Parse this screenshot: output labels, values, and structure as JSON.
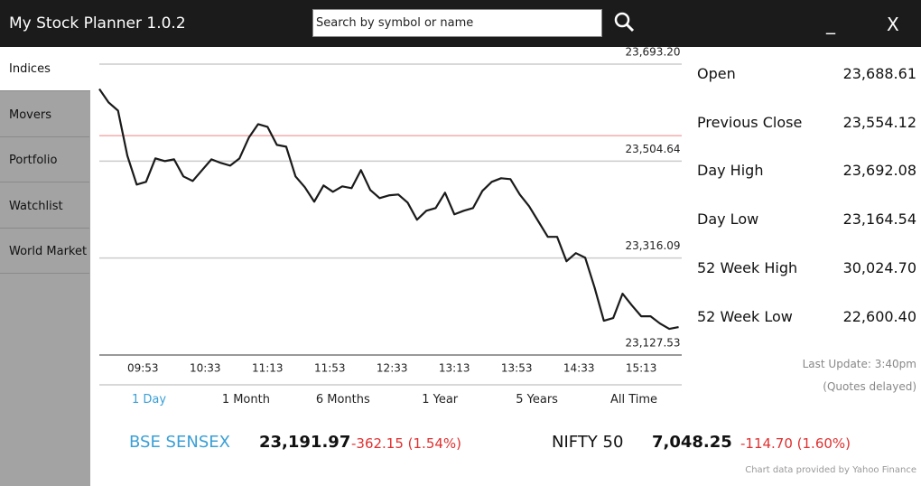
{
  "app": {
    "title": "My Stock Planner 1.0.2",
    "search_placeholder": "Search by symbol or name",
    "minimize": "_",
    "close": "X"
  },
  "sidebar": {
    "tabs": [
      "Indices",
      "Movers",
      "Portfolio",
      "Watchlist",
      "World Market"
    ],
    "selected": 0
  },
  "chart_data": {
    "type": "line",
    "x": [
      565,
      571,
      577,
      583,
      589,
      595,
      601,
      607,
      613,
      619,
      625,
      631,
      637,
      643,
      649,
      655,
      661,
      667,
      673,
      679,
      685,
      691,
      697,
      703,
      709,
      715,
      721,
      727,
      733,
      739,
      745,
      751,
      757,
      763,
      769,
      775,
      781,
      787,
      793,
      799,
      805,
      811,
      817,
      823,
      829,
      835,
      841,
      847,
      853,
      859,
      865,
      871,
      877,
      883,
      889,
      895,
      901,
      907,
      913,
      919,
      925,
      931,
      937
    ],
    "series": [
      {
        "color": "#1a1a1a",
        "values": [
          23644.9,
          23618.6,
          23602.8,
          23515.1,
          23459.0,
          23464.3,
          23509.9,
          23504.6,
          23508.1,
          23474.8,
          23466.0,
          23487.1,
          23508.1,
          23501.1,
          23495.8,
          23509.9,
          23550.2,
          23576.5,
          23571.3,
          23536.2,
          23532.7,
          23474.8,
          23453.7,
          23425.7,
          23457.3,
          23445.0,
          23455.5,
          23452.0,
          23487.1,
          23448.5,
          23432.7,
          23438.0,
          23439.7,
          23423.9,
          23390.6,
          23408.1,
          23413.4,
          23443.2,
          23401.1,
          23408.1,
          23413.4,
          23446.7,
          23464.3,
          23471.3,
          23469.5,
          23439.7,
          23416.9,
          23387.1,
          23357.3,
          23357.3,
          23309.9,
          23325.7,
          23316.9,
          23259.1,
          23194.2,
          23199.4,
          23246.8,
          23224.0,
          23202.9,
          23202.9,
          23188.9,
          23178.4,
          23181.9
        ]
      }
    ],
    "xlim": [
      565,
      939
    ],
    "xticks": [
      {
        "value": 593,
        "label": "09:53"
      },
      {
        "value": 633,
        "label": "10:33"
      },
      {
        "value": 673,
        "label": "11:13"
      },
      {
        "value": 713,
        "label": "11:53"
      },
      {
        "value": 753,
        "label": "12:33"
      },
      {
        "value": 793,
        "label": "13:13"
      },
      {
        "value": 833,
        "label": "13:53"
      },
      {
        "value": 873,
        "label": "14:33"
      },
      {
        "value": 913,
        "label": "15:13"
      }
    ],
    "ylim": [
      23127.53,
      23693.2
    ],
    "yticks": [
      {
        "value": 23127.53,
        "label": "23,127.53"
      },
      {
        "value": 23316.09,
        "label": "23,316.09"
      },
      {
        "value": 23504.64,
        "label": "23,504.64"
      },
      {
        "value": 23693.2,
        "label": "23,693.20"
      }
    ],
    "reference_line": {
      "value": 23554.12,
      "color": "#f08080"
    },
    "grid": true
  },
  "ranges": {
    "options": [
      "1 Day",
      "1 Month",
      "6 Months",
      "1 Year",
      "5 Years",
      "All Time"
    ],
    "selected": 0
  },
  "stats": [
    {
      "label": "Open",
      "value": "23,688.61"
    },
    {
      "label": "Previous Close",
      "value": "23,554.12"
    },
    {
      "label": "Day High",
      "value": "23,692.08"
    },
    {
      "label": "Day Low",
      "value": "23,164.54"
    },
    {
      "label": "52 Week High",
      "value": "30,024.70"
    },
    {
      "label": "52 Week Low",
      "value": "22,600.40"
    }
  ],
  "update": {
    "last_update": "Last Update: 3:40pm",
    "delay_note": "(Quotes delayed)"
  },
  "tickers": [
    {
      "name": "BSE SENSEX",
      "price": "23,191.97",
      "change": "-362.15 (1.54%)"
    },
    {
      "name": "NIFTY 50",
      "price": "7,048.25",
      "change": "-114.70 (1.60%)"
    }
  ],
  "footer": "Chart data provided by Yahoo Finance"
}
